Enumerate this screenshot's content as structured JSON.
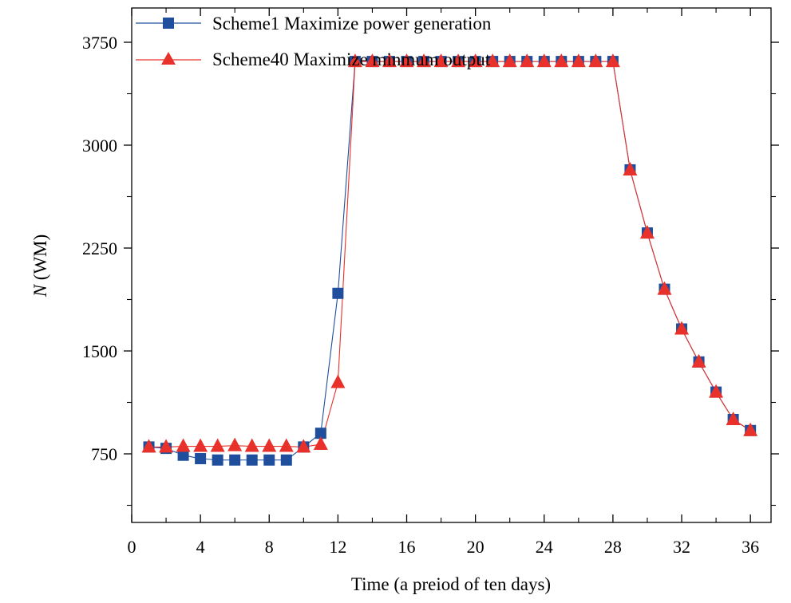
{
  "chart_data": {
    "type": "line",
    "title": "",
    "xlabel": "Time (a preiod of ten days)",
    "ylabel_italic": "N",
    "ylabel_rest": " (WM)",
    "xlim": [
      0,
      37.2
    ],
    "ylim": [
      250,
      4000
    ],
    "xticks": [
      0,
      4,
      8,
      12,
      16,
      20,
      24,
      28,
      32,
      36
    ],
    "yticks": [
      750,
      1500,
      2250,
      3000,
      3750
    ],
    "grid": false,
    "legend_position": "top-left",
    "x": [
      1,
      2,
      3,
      4,
      5,
      6,
      7,
      8,
      9,
      10,
      11,
      12,
      13,
      14,
      15,
      16,
      17,
      18,
      19,
      20,
      21,
      22,
      23,
      24,
      25,
      26,
      27,
      28,
      29,
      30,
      31,
      32,
      33,
      34,
      35,
      36
    ],
    "series": [
      {
        "name": "Scheme1 Maximize power generation",
        "color": "#1f4e9c",
        "marker": "square",
        "values": [
          800,
          790,
          740,
          715,
          705,
          705,
          705,
          705,
          705,
          800,
          900,
          1920,
          3610,
          3610,
          3610,
          3610,
          3610,
          3610,
          3610,
          3610,
          3610,
          3610,
          3610,
          3610,
          3610,
          3610,
          3610,
          3610,
          2820,
          2360,
          1950,
          1660,
          1420,
          1200,
          1000,
          920
        ]
      },
      {
        "name": "Scheme40 Maximize minmum output",
        "color": "#e8312a",
        "marker": "triangle",
        "values": [
          800,
          800,
          805,
          805,
          805,
          810,
          805,
          805,
          805,
          800,
          820,
          1270,
          3610,
          3610,
          3610,
          3610,
          3610,
          3610,
          3610,
          3610,
          3610,
          3610,
          3610,
          3610,
          3610,
          3610,
          3610,
          3610,
          2820,
          2360,
          1950,
          1660,
          1420,
          1200,
          1000,
          920
        ]
      }
    ]
  }
}
